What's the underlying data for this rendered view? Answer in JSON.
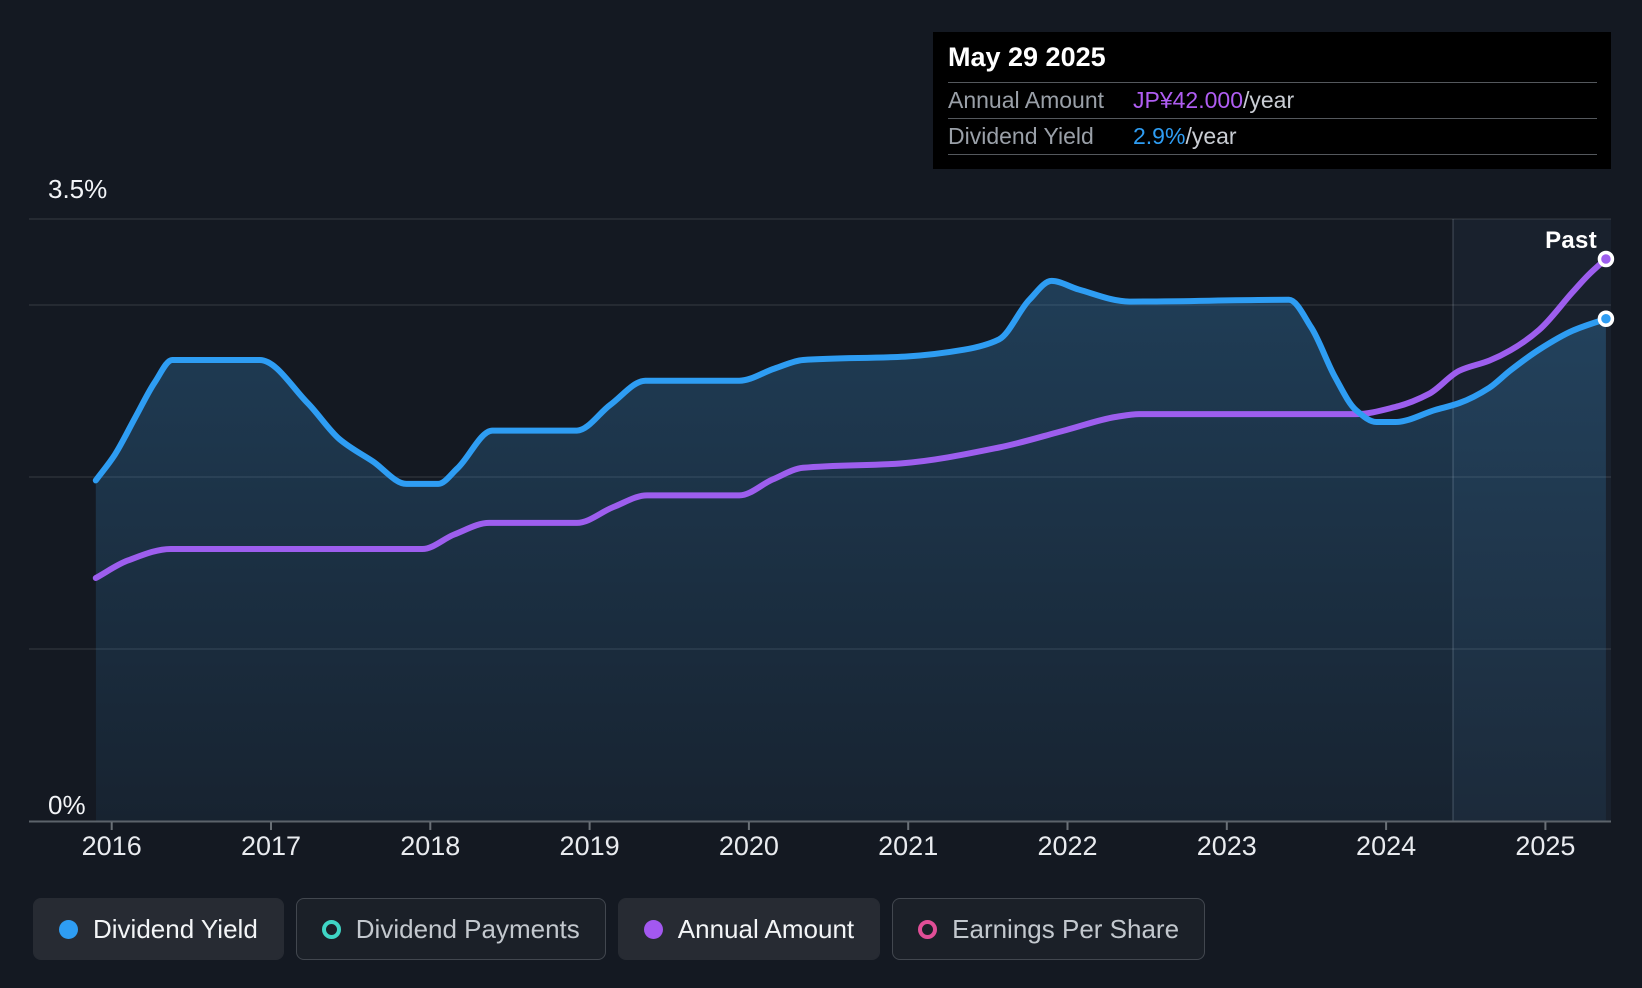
{
  "page": {
    "background": "#141922"
  },
  "tooltip": {
    "date": "May 29 2025",
    "rows": [
      {
        "label": "Annual Amount",
        "value": "JP¥42.000",
        "suffix": "/year",
        "value_color": "#af5df2"
      },
      {
        "label": "Dividend Yield",
        "value": "2.9%",
        "suffix": "/year",
        "value_color": "#2e9df3"
      }
    ]
  },
  "past_label": "Past",
  "axis": {
    "y_max_label": "3.5%",
    "y_min_label": "0%",
    "years": [
      "2016",
      "2017",
      "2018",
      "2019",
      "2020",
      "2021",
      "2022",
      "2023",
      "2024",
      "2025"
    ]
  },
  "legend": [
    {
      "label": "Dividend Yield",
      "marker": "filled",
      "color": "#2e9df3",
      "active": true
    },
    {
      "label": "Dividend Payments",
      "marker": "outline",
      "color": "#3fd5c5",
      "active": false
    },
    {
      "label": "Annual Amount",
      "marker": "filled",
      "color": "#a358f0",
      "active": true
    },
    {
      "label": "Earnings Per Share",
      "marker": "outline",
      "color": "#e14e97",
      "active": false
    }
  ],
  "chart_data": {
    "type": "line",
    "title": "Dividend history",
    "legend_position": "bottom",
    "grid": true,
    "ylim_percent": [
      0,
      3.5
    ],
    "gridlines_percent": [
      3.5,
      3.0,
      2.0,
      1.0
    ],
    "x_range_years": [
      2015.9,
      2025.45
    ],
    "x_tick_years": [
      2016,
      2017,
      2018,
      2019,
      2020,
      2021,
      2022,
      2023,
      2024,
      2025
    ],
    "past_divider_year": 2024.42,
    "current_date": "May 29 2025",
    "current_dividend_yield_percent": 2.9,
    "current_annual_amount_jpy": 42.0,
    "series": [
      {
        "name": "Dividend Yield",
        "unit": "percent",
        "color": "#2e9df3",
        "area_fill": true,
        "points": [
          [
            2015.9,
            1.98
          ],
          [
            2016.02,
            2.13
          ],
          [
            2016.15,
            2.35
          ],
          [
            2016.27,
            2.55
          ],
          [
            2016.38,
            2.68
          ],
          [
            2016.93,
            2.68
          ],
          [
            2017.23,
            2.43
          ],
          [
            2017.43,
            2.22
          ],
          [
            2017.64,
            2.09
          ],
          [
            2017.85,
            1.96
          ],
          [
            2018.05,
            1.96
          ],
          [
            2018.17,
            2.05
          ],
          [
            2018.39,
            2.27
          ],
          [
            2018.92,
            2.27
          ],
          [
            2019.13,
            2.42
          ],
          [
            2019.35,
            2.56
          ],
          [
            2019.94,
            2.56
          ],
          [
            2020.16,
            2.63
          ],
          [
            2020.34,
            2.68
          ],
          [
            2020.98,
            2.7
          ],
          [
            2021.35,
            2.74
          ],
          [
            2021.57,
            2.8
          ],
          [
            2021.76,
            3.03
          ],
          [
            2021.9,
            3.14
          ],
          [
            2022.07,
            3.09
          ],
          [
            2022.39,
            3.02
          ],
          [
            2023.39,
            3.03
          ],
          [
            2023.53,
            2.87
          ],
          [
            2023.68,
            2.58
          ],
          [
            2023.81,
            2.39
          ],
          [
            2023.94,
            2.32
          ],
          [
            2024.06,
            2.32
          ],
          [
            2024.31,
            2.39
          ],
          [
            2024.46,
            2.43
          ],
          [
            2024.65,
            2.52
          ],
          [
            2024.78,
            2.62
          ],
          [
            2024.96,
            2.74
          ],
          [
            2025.17,
            2.85
          ],
          [
            2025.38,
            2.92
          ]
        ]
      },
      {
        "name": "Annual Amount",
        "unit": "JPY_per_year",
        "color": "#9d5eee",
        "area_fill": false,
        "points": [
          [
            2015.9,
            20.0
          ],
          [
            2016.1,
            21.2
          ],
          [
            2016.37,
            22.0
          ],
          [
            2017.95,
            22.0
          ],
          [
            2018.15,
            23.0
          ],
          [
            2018.37,
            23.8
          ],
          [
            2018.92,
            23.8
          ],
          [
            2019.15,
            24.9
          ],
          [
            2019.36,
            25.7
          ],
          [
            2019.94,
            25.7
          ],
          [
            2020.15,
            26.8
          ],
          [
            2020.34,
            27.6
          ],
          [
            2020.95,
            27.9
          ],
          [
            2021.57,
            29.0
          ],
          [
            2021.99,
            30.2
          ],
          [
            2022.3,
            31.1
          ],
          [
            2022.45,
            31.3
          ],
          [
            2023.81,
            31.3
          ],
          [
            2024.06,
            31.8
          ],
          [
            2024.27,
            32.7
          ],
          [
            2024.46,
            34.3
          ],
          [
            2024.65,
            35.0
          ],
          [
            2024.78,
            35.7
          ],
          [
            2024.96,
            37.1
          ],
          [
            2025.17,
            39.7
          ],
          [
            2025.27,
            40.9
          ],
          [
            2025.38,
            42.0
          ]
        ]
      }
    ]
  }
}
